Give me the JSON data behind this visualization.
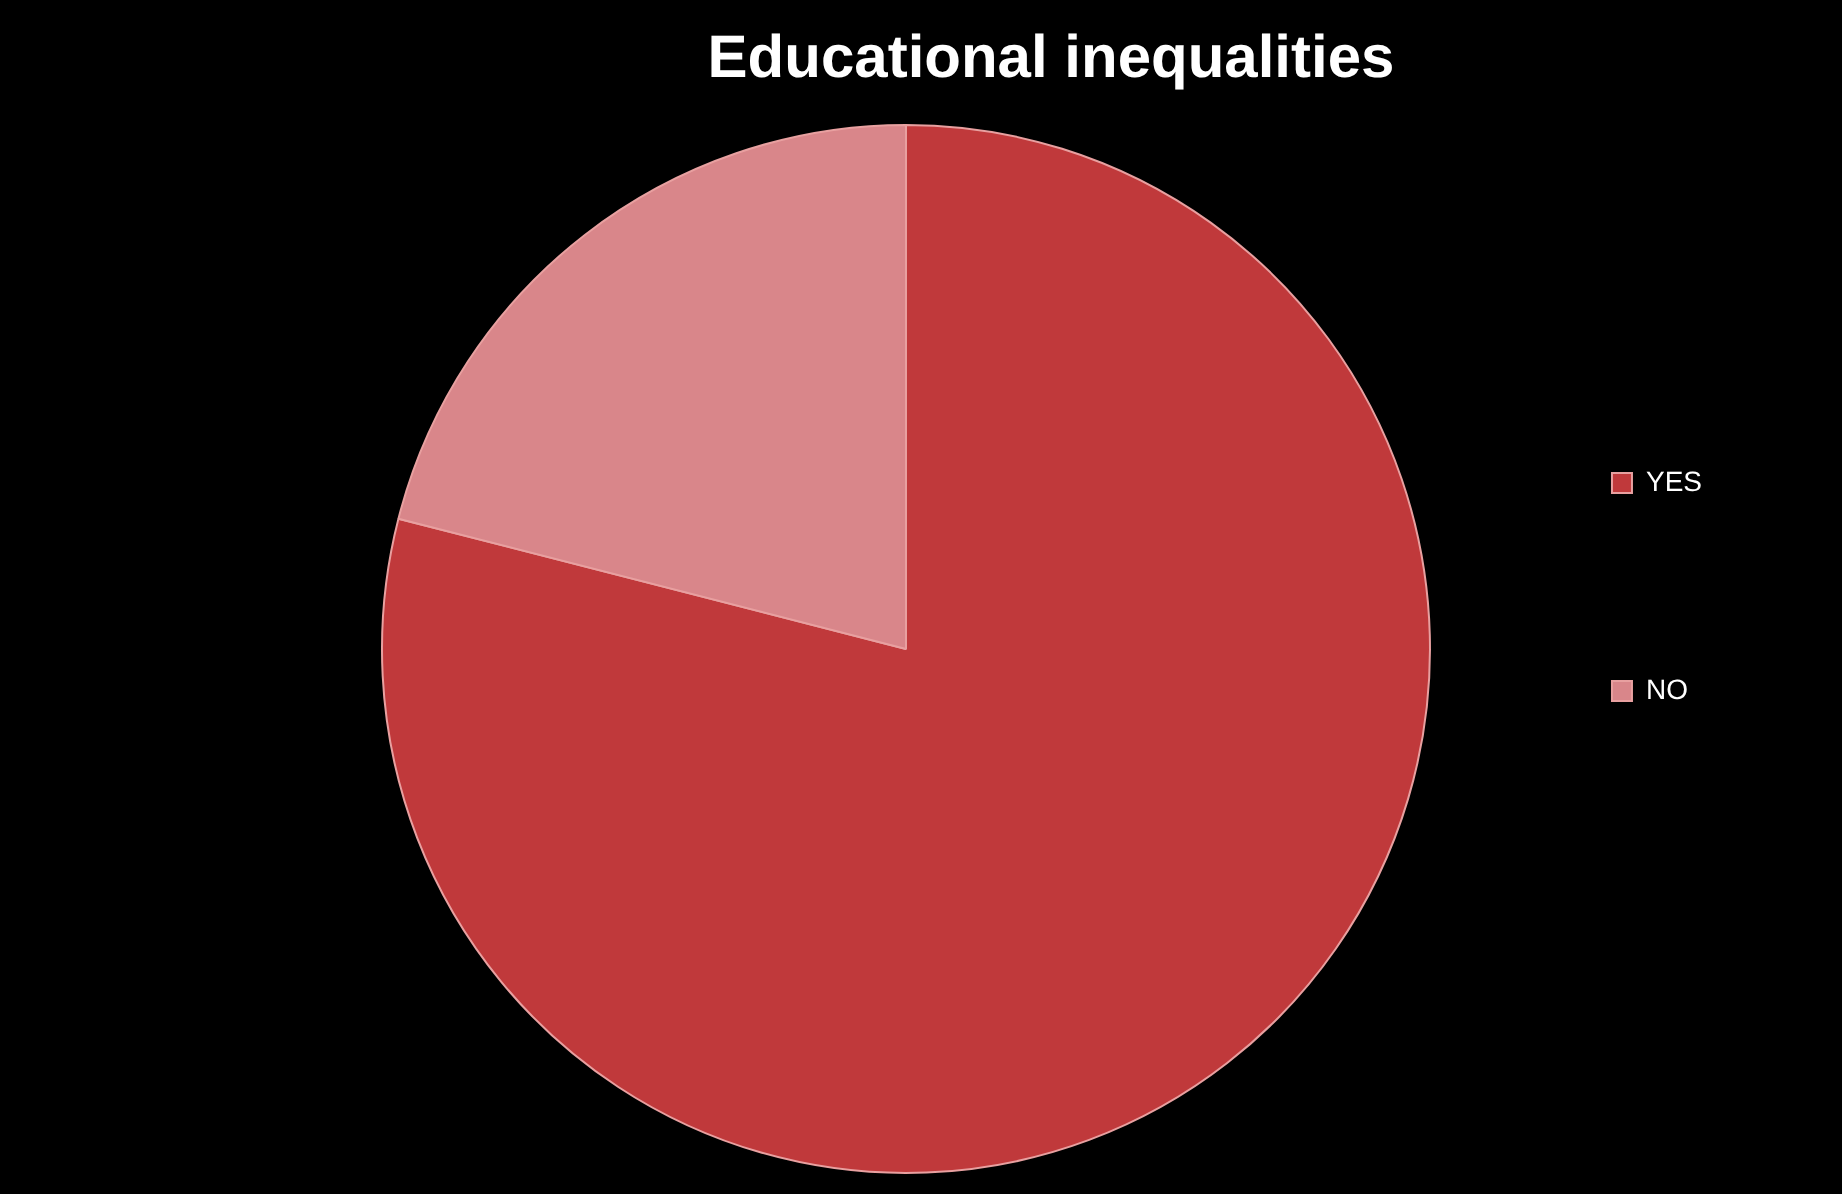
{
  "chart_data": {
    "type": "pie",
    "title": "Educational inequalities",
    "categories": [
      "YES",
      "NO"
    ],
    "values": [
      79,
      21
    ],
    "colors": [
      "#c0393b",
      "#d9868a"
    ],
    "legend": "right"
  }
}
